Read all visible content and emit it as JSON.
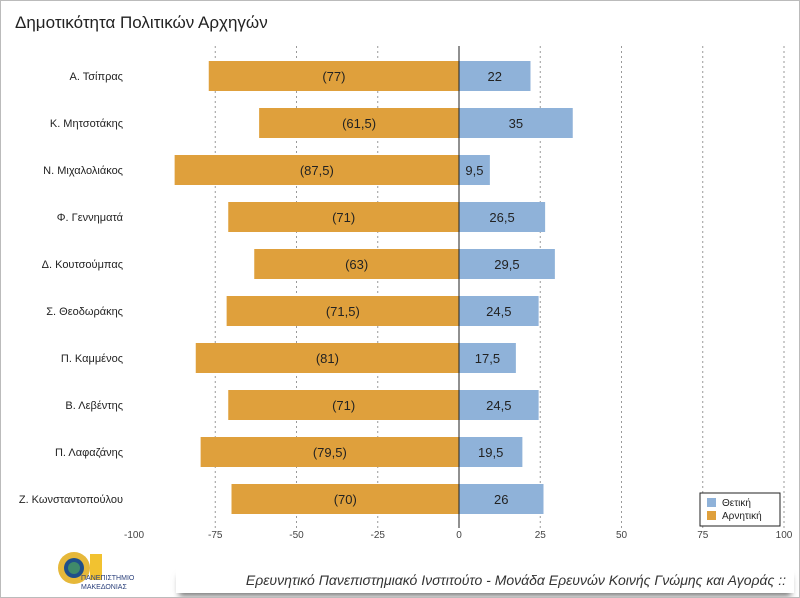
{
  "chart_data": {
    "type": "bar",
    "title": "Δημοτικότητα Πολιτικών Αρχηγών",
    "categories": [
      "Α. Τσίπρας",
      "Κ. Μητσοτάκης",
      "Ν. Μιχαλολιάκος",
      "Φ. Γεννηματά",
      "Δ. Κουτσούμπας",
      "Σ. Θεοδωράκης",
      "Π. Καμμένος",
      "Β. Λεβέντης",
      "Π. Λαφαζάνης",
      "Ζ. Κωνσταντοπούλου"
    ],
    "series": [
      {
        "name": "Θετική",
        "color": "#8fb2d9",
        "values": [
          22,
          35,
          9.5,
          26.5,
          29.5,
          24.5,
          17.5,
          24.5,
          19.5,
          26
        ],
        "labels": [
          "22",
          "35",
          "9,5",
          "26,5",
          "29,5",
          "24,5",
          "17,5",
          "24,5",
          "19,5",
          "26"
        ]
      },
      {
        "name": "Αρνητική",
        "color": "#dfa03c",
        "values": [
          -77,
          -61.5,
          -87.5,
          -71,
          -63,
          -71.5,
          -81,
          -71,
          -79.5,
          -70
        ],
        "labels": [
          "(77)",
          "(61,5)",
          "(87,5)",
          "(71)",
          "(63)",
          "(71,5)",
          "(81)",
          "(71)",
          "(79,5)",
          "(70)"
        ]
      }
    ],
    "xlim": [
      -100,
      100
    ],
    "xticks": [
      "-100",
      "-75",
      "-50",
      "-25",
      "0",
      "25",
      "50",
      "75",
      "100"
    ],
    "legend": "bottom-right",
    "grid": true
  },
  "footer": "Ερευνητικό Πανεπιστημιακό Ινστιτούτο - Μονάδα Ερευνών Κοινής Γνώμης και Αγοράς ::",
  "logo": {
    "line1": "ΠΑΝΕΠΙΣΤΗΜΙΟ",
    "line2": "ΜΑΚΕΔΟΝΙΑΣ"
  }
}
